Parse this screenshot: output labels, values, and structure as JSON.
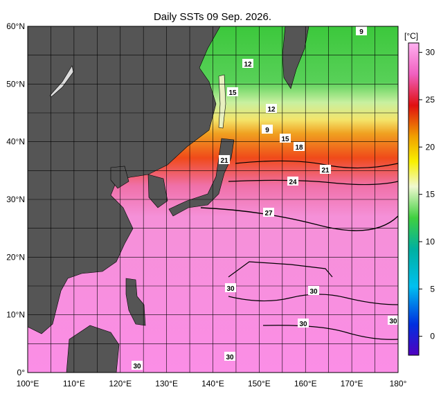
{
  "title": "Daily SSTs 09 Sep. 2026.",
  "lat_labels": [
    "60°N",
    "50°N",
    "40°N",
    "30°N",
    "20°N",
    "10°N",
    "0°"
  ],
  "lon_labels": [
    "100°E",
    "110°E",
    "120°E",
    "130°E",
    "140°E",
    "150°E",
    "160°E",
    "170°E",
    "180°"
  ],
  "colorbar": {
    "unit": "[°C]",
    "range": [
      -2,
      31
    ],
    "ticks": [
      30,
      25,
      20,
      15,
      10,
      5,
      0
    ]
  },
  "contour_labels": [
    "9",
    "12",
    "15",
    "12",
    "9",
    "15",
    "18",
    "21",
    "21",
    "24",
    "27",
    "30",
    "30",
    "30",
    "30",
    "30",
    "30"
  ]
}
